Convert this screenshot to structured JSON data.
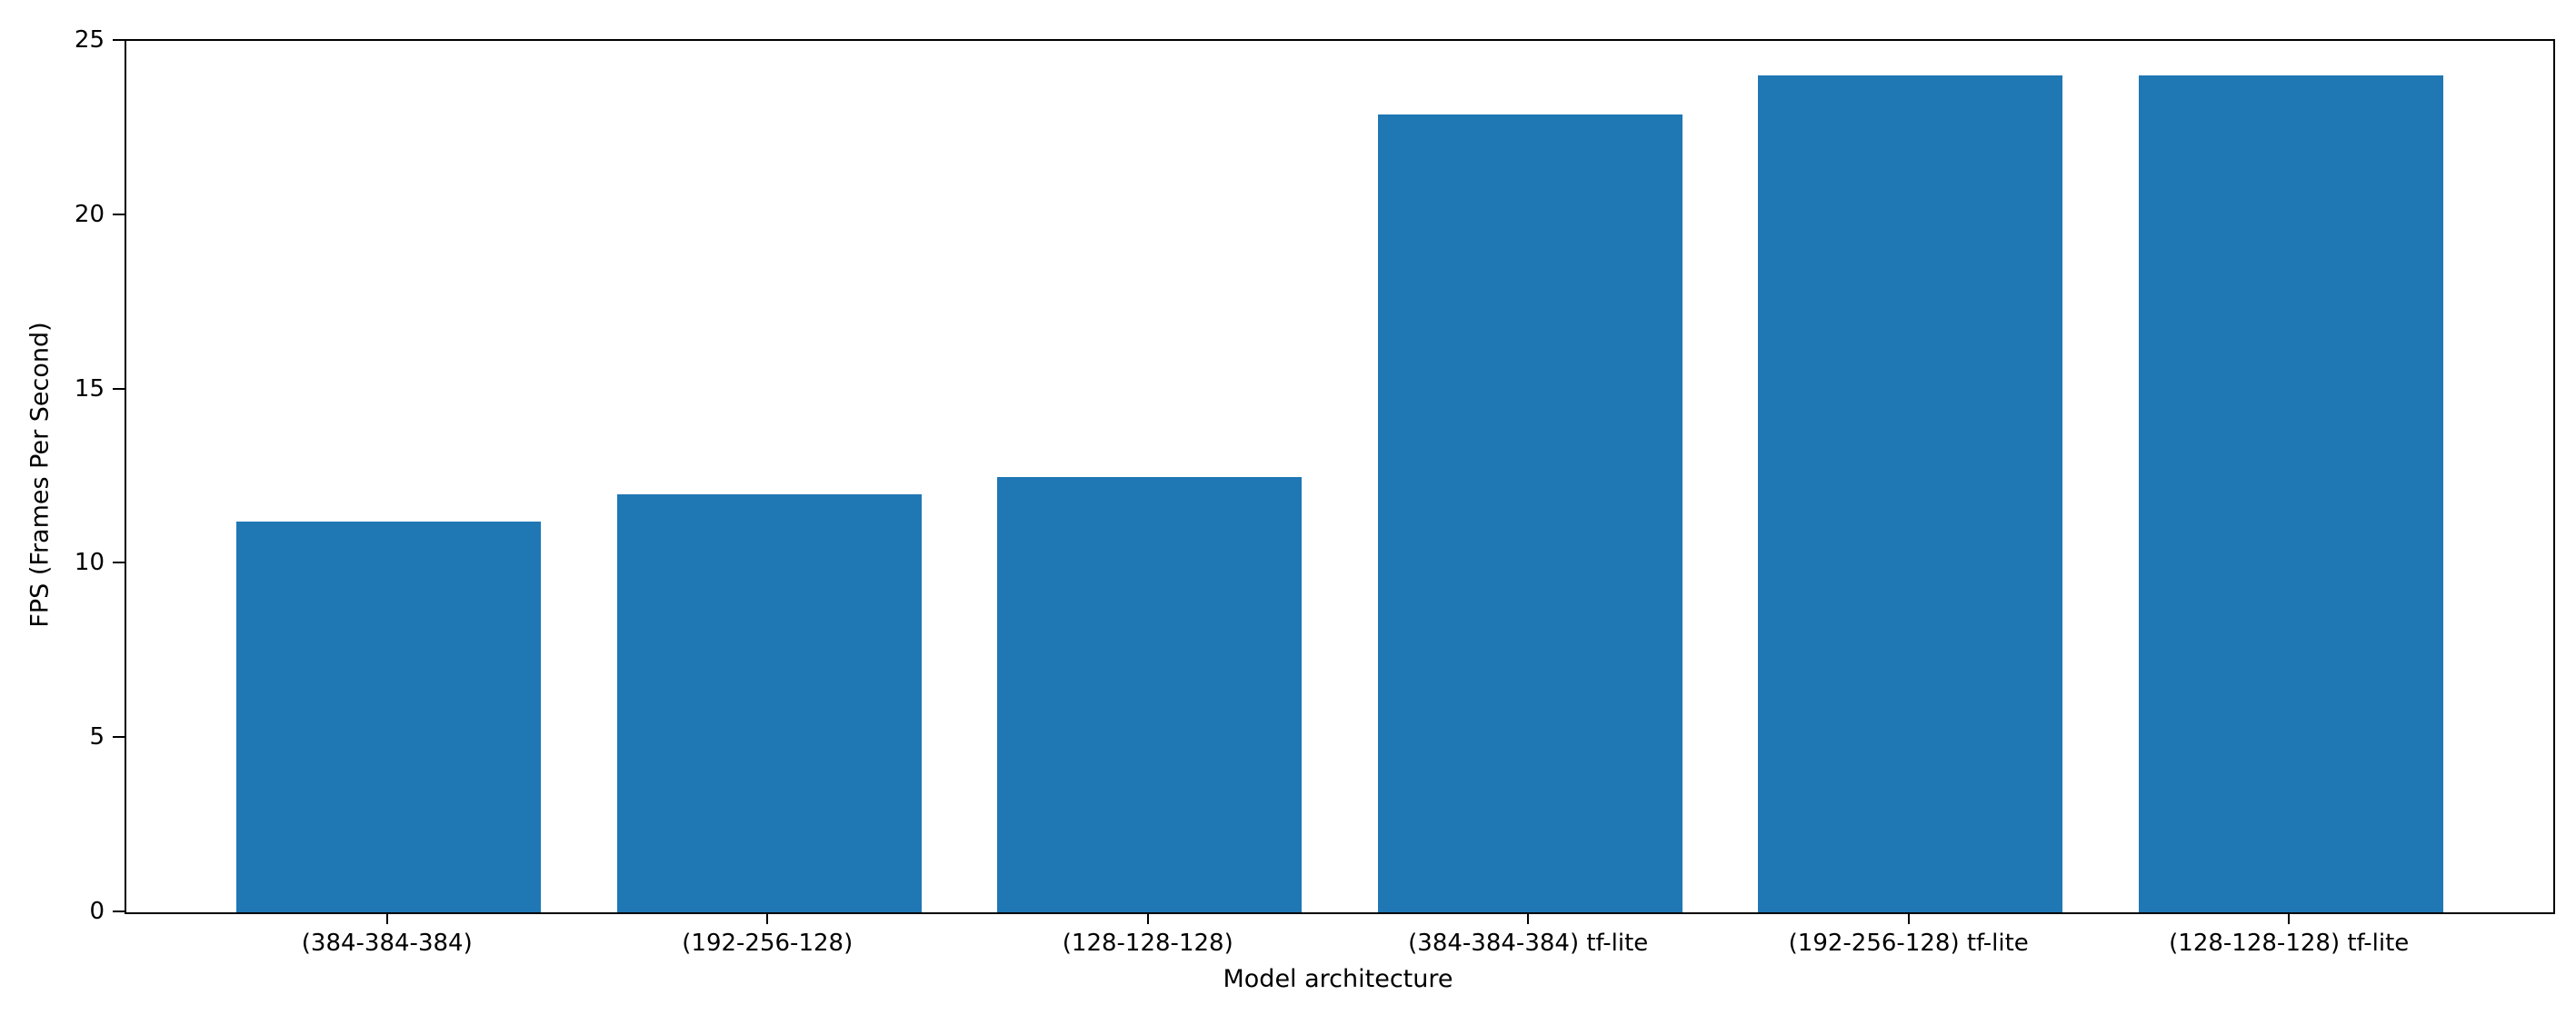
{
  "chart_data": {
    "type": "bar",
    "title": "",
    "xlabel": "Model architecture",
    "ylabel": "FPS (Frames Per Second)",
    "categories": [
      "(384-384-384)",
      "(192-256-128)",
      "(128-128-128)",
      "(384-384-384) tf-lite",
      "(192-256-128) tf-lite",
      "(128-128-128) tf-lite"
    ],
    "values": [
      11.2,
      12.0,
      12.5,
      22.9,
      24.0,
      24.0
    ],
    "ylim": [
      0,
      25
    ],
    "yticks": [
      0,
      5,
      10,
      15,
      20,
      25
    ],
    "grid": false,
    "legend": null,
    "bar_color": "#1f77b4",
    "axis_color": "#000000",
    "background_color": "#ffffff"
  }
}
